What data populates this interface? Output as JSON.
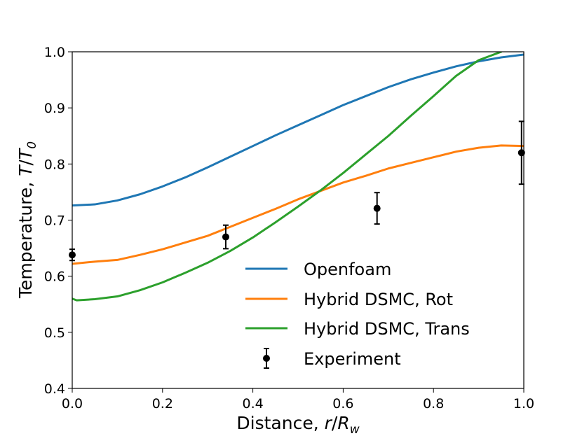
{
  "chart_data": {
    "type": "line",
    "xlabel_prefix": "Distance, ",
    "xlabel_var": "r",
    "xlabel_slash": "/",
    "xlabel_sub_base": "R",
    "xlabel_sub": "w",
    "ylabel_prefix": "Temperature, ",
    "ylabel_var": "T",
    "ylabel_slash": "/",
    "ylabel_sub_base": "T",
    "ylabel_sub": "0",
    "xlim": [
      0.0,
      1.0
    ],
    "ylim": [
      0.4,
      1.0
    ],
    "xticks": [
      "0.0",
      "0.2",
      "0.4",
      "0.6",
      "0.8",
      "1.0"
    ],
    "yticks": [
      "0.4",
      "0.5",
      "0.6",
      "0.7",
      "0.8",
      "0.9",
      "1.0"
    ],
    "legend_position": "lower-right",
    "series": [
      {
        "name": "Openfoam",
        "color": "#1f77b4",
        "x": [
          0.0,
          0.05,
          0.1,
          0.15,
          0.2,
          0.25,
          0.3,
          0.35,
          0.4,
          0.45,
          0.5,
          0.55,
          0.6,
          0.65,
          0.7,
          0.75,
          0.8,
          0.85,
          0.9,
          0.95,
          1.0
        ],
        "y": [
          0.726,
          0.728,
          0.735,
          0.746,
          0.76,
          0.776,
          0.794,
          0.813,
          0.832,
          0.851,
          0.869,
          0.887,
          0.905,
          0.921,
          0.937,
          0.951,
          0.963,
          0.974,
          0.983,
          0.99,
          0.995
        ]
      },
      {
        "name": "Hybrid DSMC, Rot",
        "color": "#ff7f0e",
        "x": [
          0.0,
          0.05,
          0.1,
          0.15,
          0.2,
          0.25,
          0.3,
          0.35,
          0.4,
          0.45,
          0.5,
          0.55,
          0.6,
          0.65,
          0.7,
          0.75,
          0.8,
          0.85,
          0.9,
          0.95,
          1.0
        ],
        "y": [
          0.622,
          0.626,
          0.629,
          0.638,
          0.648,
          0.66,
          0.672,
          0.688,
          0.704,
          0.72,
          0.737,
          0.752,
          0.767,
          0.779,
          0.792,
          0.802,
          0.812,
          0.822,
          0.829,
          0.833,
          0.832
        ]
      },
      {
        "name": "Hybrid DSMC, Trans",
        "color": "#2ca02c",
        "x": [
          0.0,
          0.01,
          0.05,
          0.1,
          0.15,
          0.2,
          0.25,
          0.3,
          0.35,
          0.4,
          0.45,
          0.5,
          0.55,
          0.6,
          0.65,
          0.7,
          0.75,
          0.8,
          0.85,
          0.9,
          0.95
        ],
        "y": [
          0.56,
          0.557,
          0.559,
          0.564,
          0.575,
          0.589,
          0.606,
          0.624,
          0.645,
          0.669,
          0.696,
          0.724,
          0.753,
          0.784,
          0.817,
          0.85,
          0.886,
          0.921,
          0.957,
          0.985,
          1.0
        ]
      }
    ],
    "experiment": {
      "name": "Experiment",
      "color": "#000000",
      "x": [
        0.0,
        0.34,
        0.675,
        0.995
      ],
      "y": [
        0.638,
        0.67,
        0.721,
        0.82
      ],
      "err": [
        0.01,
        0.021,
        0.028,
        0.056
      ]
    }
  }
}
